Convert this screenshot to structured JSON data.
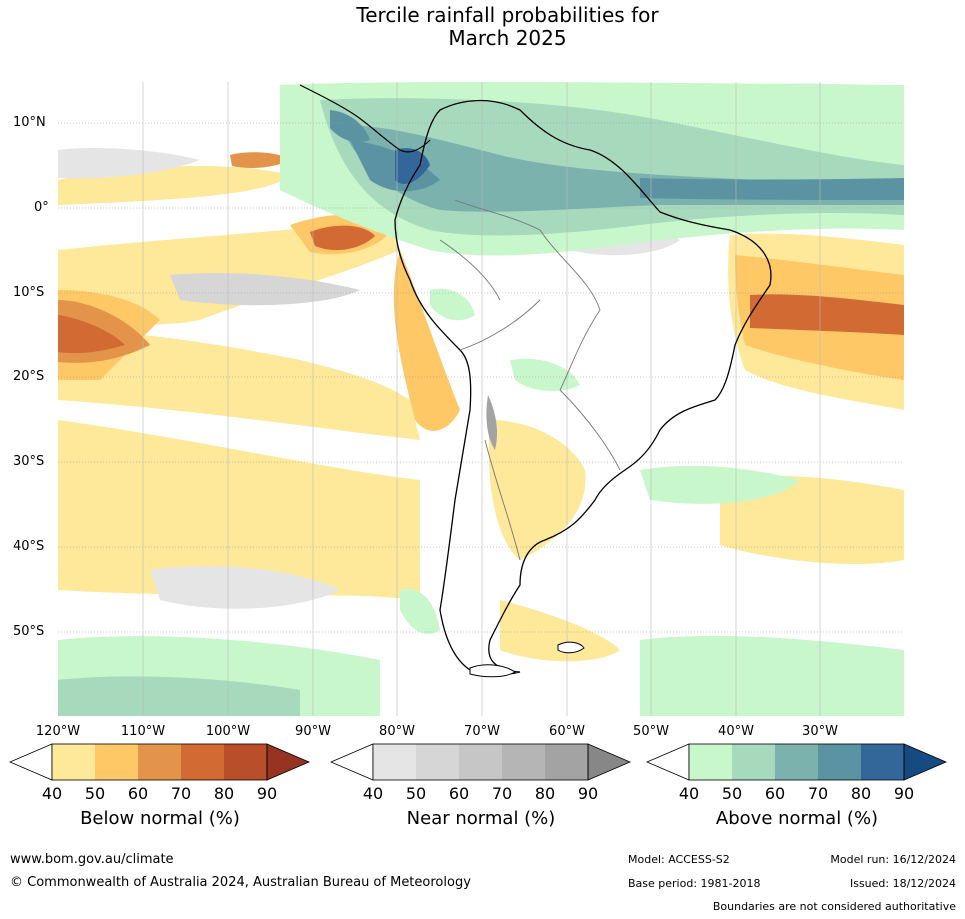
{
  "title_line1": "Tercile rainfall probabilities for",
  "title_line2": "March 2025",
  "lat_labels": [
    "10°N",
    "0°",
    "10°S",
    "20°S",
    "30°S",
    "40°S",
    "50°S"
  ],
  "lon_labels": [
    "120°W",
    "110°W",
    "100°W",
    "90°W",
    "80°W",
    "70°W",
    "60°W",
    "50°W",
    "40°W",
    "30°W"
  ],
  "colorbars": [
    {
      "title": "Below normal (%)",
      "ticks": [
        "40",
        "50",
        "60",
        "70",
        "80",
        "90"
      ],
      "colors": [
        "#ffffff",
        "#fee89a",
        "#fdc865",
        "#e3944a",
        "#d26a34",
        "#b84f2a",
        "#963421"
      ]
    },
    {
      "title": "Near normal (%)",
      "ticks": [
        "40",
        "50",
        "60",
        "70",
        "80",
        "90"
      ],
      "colors": [
        "#ffffff",
        "#e5e5e5",
        "#d6d6d6",
        "#c6c6c6",
        "#b5b5b5",
        "#a3a3a3",
        "#878787"
      ]
    },
    {
      "title": "Above normal (%)",
      "ticks": [
        "40",
        "50",
        "60",
        "70",
        "80",
        "90"
      ],
      "colors": [
        "#ffffff",
        "#c8f7cb",
        "#a7d9bd",
        "#7bb2ad",
        "#5b93a2",
        "#336799",
        "#164a83"
      ]
    }
  ],
  "footer": {
    "website": "www.bom.gov.au/climate",
    "copyright": "© Commonwealth of Australia 2024, Australian Bureau of Meteorology",
    "model": "Model: ACCESS-S2",
    "model_run": "Model run: 16/12/2024",
    "base_period": "Base period: 1981-2018",
    "issued": "Issued: 18/12/2024",
    "disclaimer": "Boundaries are not considered authoritative"
  }
}
